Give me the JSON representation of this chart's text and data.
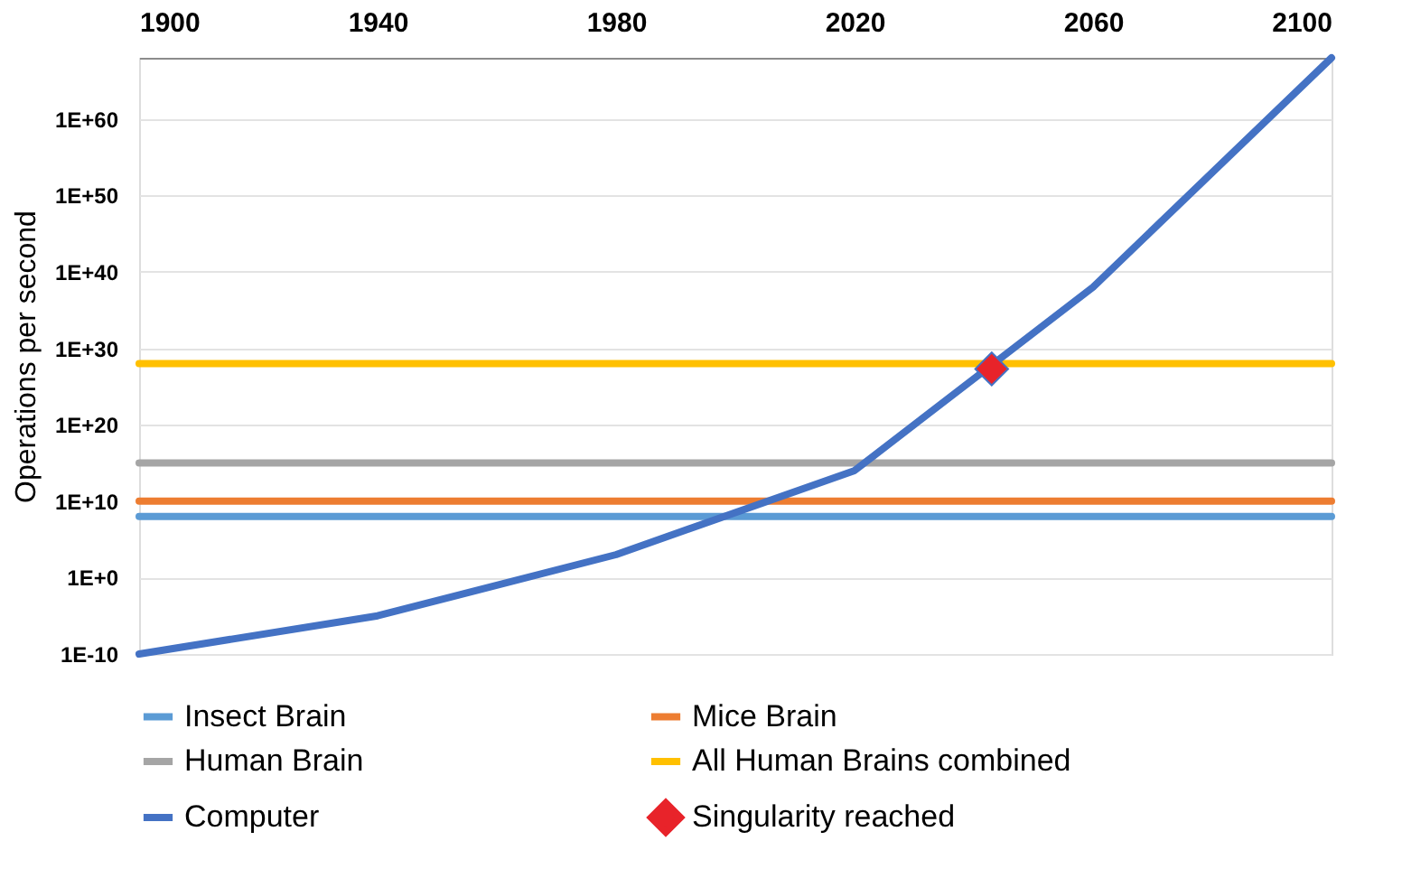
{
  "chart_data": {
    "type": "line",
    "ylabel": "Operations per second",
    "log": "y",
    "grid": "y",
    "legend": "bottom",
    "line_style": "solid",
    "marker": "none",
    "xlim": [
      1900,
      2100
    ],
    "xticks": [
      1900,
      1940,
      1980,
      2020,
      2060,
      2100
    ],
    "ylim": [
      1e-10,
      1e+68
    ],
    "yticks": [
      {
        "value": 1e-10,
        "label": "1E-10"
      },
      {
        "value": 1,
        "label": "1E+0"
      },
      {
        "value": 10000000000.0,
        "label": "1E+10"
      },
      {
        "value": 1e+20,
        "label": "1E+20"
      },
      {
        "value": 1e+30,
        "label": "1E+30"
      },
      {
        "value": 1e+40,
        "label": "1E+40"
      },
      {
        "value": 1e+50,
        "label": "1E+50"
      },
      {
        "value": 1e+60,
        "label": "1E+60"
      }
    ],
    "series": [
      {
        "name": "Insect Brain",
        "color": "#5b9bd5",
        "x": [
          1900,
          1940,
          1980,
          2020,
          2060,
          2100
        ],
        "values": [
          100000000.0,
          100000000.0,
          100000000.0,
          100000000.0,
          100000000.0,
          100000000.0
        ]
      },
      {
        "name": "Mice Brain",
        "color": "#ed7d31",
        "x": [
          1900,
          1940,
          1980,
          2020,
          2060,
          2100
        ],
        "values": [
          10000000000.0,
          10000000000.0,
          10000000000.0,
          10000000000.0,
          10000000000.0,
          10000000000.0
        ]
      },
      {
        "name": "Human Brain",
        "color": "#a5a5a5",
        "x": [
          1900,
          1940,
          1980,
          2020,
          2060,
          2100
        ],
        "values": [
          1000000000000000.0,
          1000000000000000.0,
          1000000000000000.0,
          1000000000000000.0,
          1000000000000000.0,
          1000000000000000.0
        ]
      },
      {
        "name": "All Human Brains combined",
        "color": "#ffc000",
        "x": [
          1900,
          1940,
          1980,
          2020,
          2060,
          2100
        ],
        "values": [
          1e+28,
          1e+28,
          1e+28,
          1e+28,
          1e+28,
          1e+28
        ]
      },
      {
        "name": "Computer",
        "color": "#4472c4",
        "x": [
          1900,
          1940,
          1980,
          2020,
          2060,
          2100
        ],
        "values": [
          1e-10,
          1e-05,
          1000.0,
          100000000000000.0,
          1e+38,
          1e+68
        ]
      },
      {
        "name": "Singularity reached",
        "type": "scatter",
        "marker": "diamond",
        "color": "#e8232a",
        "x": [
          2043
        ],
        "values": [
          2e+27
        ]
      }
    ]
  }
}
